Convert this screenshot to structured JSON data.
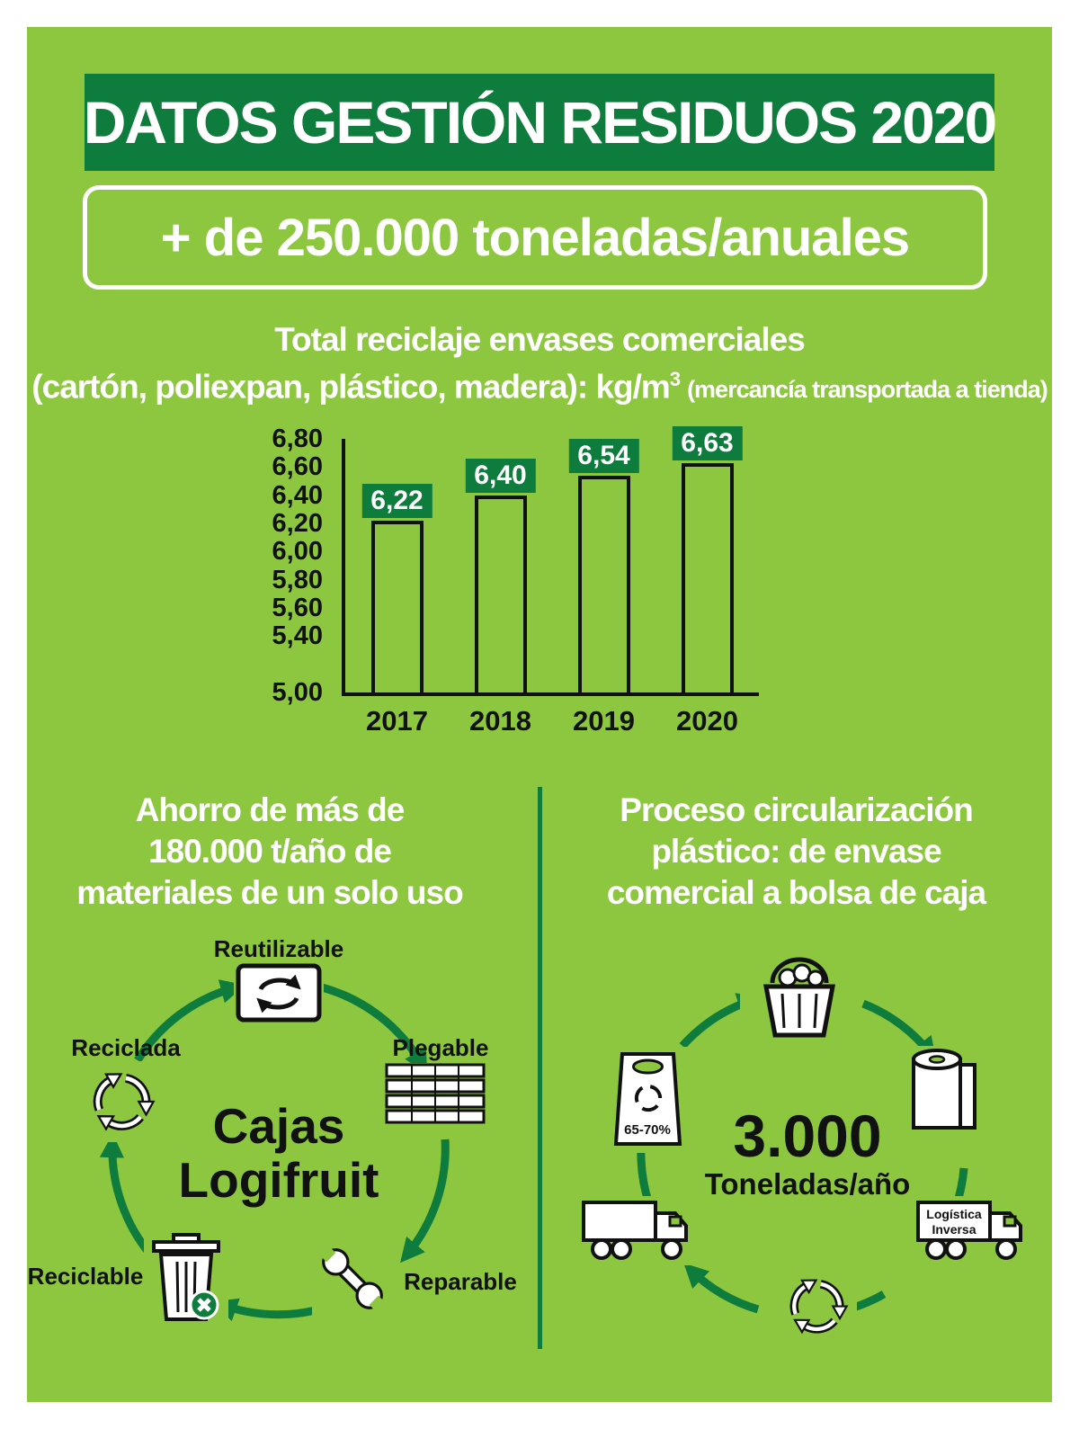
{
  "header": {
    "title": "DATOS GESTIÓN RESIDUOS 2020",
    "banner": "+ de 250.000 toneladas/anuales"
  },
  "chart_section": {
    "title_line1": "Total reciclaje envases comerciales",
    "title_line2": "(cartón, poliexpan, plástico, madera): kg/m",
    "title_superscript": "3",
    "title_note": "(mercancía transportada a tienda)"
  },
  "chart_data": {
    "type": "bar",
    "title": "Total reciclaje envases comerciales (cartón, poliexpan, plástico, madera): kg/m³ (mercancía transportada a tienda)",
    "categories": [
      "2017",
      "2018",
      "2019",
      "2020"
    ],
    "values": [
      6.22,
      6.4,
      6.54,
      6.63
    ],
    "value_labels": [
      "6,22",
      "6,40",
      "6,54",
      "6,63"
    ],
    "ylim": [
      5.0,
      6.8
    ],
    "ytick_labels": [
      "6,80",
      "6,60",
      "6,40",
      "6,20",
      "6,00",
      "5,80",
      "5,60",
      "5,40",
      "5,00"
    ],
    "xlabel": "",
    "ylabel": "",
    "grid": false,
    "legend": false,
    "bar_fill": "#8dc63f",
    "bar_border": "#111111",
    "value_label_bg": "#0e7c3c",
    "value_label_color": "#ffffff"
  },
  "left_section": {
    "heading_line1": "Ahorro de más de",
    "heading_line2": "180.000 t/año de",
    "heading_line3": "materiales de un solo uso",
    "center_line1": "Cajas",
    "center_line2": "Logifruit",
    "label_top": "Reutilizable",
    "label_left": "Reciclada",
    "label_right": "Plegable",
    "label_bottom_left": "Reciclable",
    "label_bottom_right": "Reparable"
  },
  "right_section": {
    "heading_line1": "Proceso circularización",
    "heading_line2": "plástico: de envase",
    "heading_line3": "comercial a bolsa de caja",
    "center_value": "3.000",
    "center_unit": "Toneladas/año",
    "bag_percent": "65-70%",
    "truck_label_line1": "Logística",
    "truck_label_line2": "Inversa"
  },
  "colors": {
    "background_green": "#8dc63f",
    "dark_green": "#0e7c3c",
    "white": "#ffffff",
    "black": "#111111"
  }
}
